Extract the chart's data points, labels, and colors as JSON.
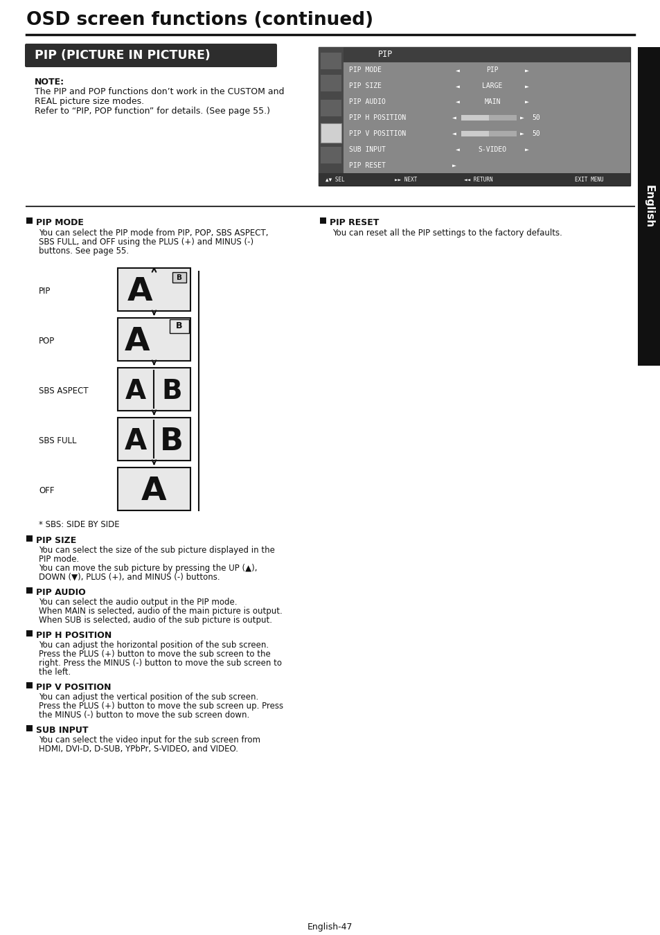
{
  "page_title": "OSD screen functions (continued)",
  "section_title": "PIP (PICTURE IN PICTURE)",
  "note_title": "NOTE:",
  "note_lines": [
    "The PIP and POP functions don’t work in the CUSTOM and",
    "REAL picture size modes.",
    "Refer to “PIP, POP function” for details. (See page 55.)"
  ],
  "pip_menu_title": "PIP",
  "pip_menu_items": [
    {
      "label": "PIP MODE",
      "left": "◄",
      "value": "PIP",
      "right": "►",
      "slider": false,
      "num": ""
    },
    {
      "label": "PIP SIZE",
      "left": "◄",
      "value": "LARGE",
      "right": "►",
      "slider": false,
      "num": ""
    },
    {
      "label": "PIP AUDIO",
      "left": "◄",
      "value": "MAIN",
      "right": "►",
      "slider": false,
      "num": ""
    },
    {
      "label": "PIP H POSITION",
      "left": "◄",
      "value": "",
      "right": "►",
      "slider": true,
      "num": "50"
    },
    {
      "label": "PIP V POSITION",
      "left": "◄",
      "value": "",
      "right": "►",
      "slider": true,
      "num": "50"
    },
    {
      "label": "SUB INPUT",
      "left": "◄",
      "value": "S-VIDEO",
      "right": "►",
      "slider": false,
      "num": ""
    },
    {
      "label": "PIP RESET",
      "left": "►",
      "value": "",
      "right": "",
      "slider": false,
      "num": ""
    }
  ],
  "nav_bar_left": "▲▼ SEL",
  "nav_bar_mid1": "►► NEXT",
  "nav_bar_mid2": "◄◄ RETURN",
  "nav_bar_right": "EXIT MENU",
  "sidebar_label": "English",
  "pip_mode_title": "PIP MODE",
  "pip_mode_text1": "You can select the PIP mode from PIP, POP, SBS ASPECT,",
  "pip_mode_text2": "SBS FULL, and OFF using the PLUS (+) and MINUS (-)",
  "pip_mode_text3": "buttons. See page 55.",
  "pip_modes": [
    "PIP",
    "POP",
    "SBS ASPECT",
    "SBS FULL",
    "OFF"
  ],
  "sbs_note": "* SBS: SIDE BY SIDE",
  "pip_reset_title": "PIP RESET",
  "pip_reset_text": "You can reset all the PIP settings to the factory defaults.",
  "sections": [
    {
      "title": "PIP SIZE",
      "lines": [
        "You can select the size of the sub picture displayed in the",
        "PIP mode.",
        "You can move the sub picture by pressing the UP (▲),",
        "DOWN (▼), PLUS (+), and MINUS (-) buttons."
      ]
    },
    {
      "title": "PIP AUDIO",
      "lines": [
        "You can select the audio output in the PIP mode.",
        "When MAIN is selected, audio of the main picture is output.",
        "When SUB is selected, audio of the sub picture is output."
      ]
    },
    {
      "title": "PIP H POSITION",
      "lines": [
        "You can adjust the horizontal position of the sub screen.",
        "Press the PLUS (+) button to move the sub screen to the",
        "right. Press the MINUS (-) button to move the sub screen to",
        "the left."
      ]
    },
    {
      "title": "PIP V POSITION",
      "lines": [
        "You can adjust the vertical position of the sub screen.",
        "Press the PLUS (+) button to move the sub screen up. Press",
        "the MINUS (-) button to move the sub screen down."
      ]
    },
    {
      "title": "SUB INPUT",
      "lines": [
        "You can select the video input for the sub screen from",
        "HDMI, DVI-D, D-SUB, YPbPr, S-VIDEO, and VIDEO."
      ]
    }
  ],
  "page_number": "English-47",
  "bg_color": "#ffffff",
  "title_color": "#111111",
  "section_bg": "#2a2a2a",
  "section_text_color": "#ffffff",
  "menu_bg_dark": "#5a5a5a",
  "menu_bg_mid": "#777777",
  "menu_bg_light": "#8e8e8e",
  "menu_title_bg": "#444444",
  "menu_text_color": "#ffffff",
  "sidebar_bg": "#111111",
  "sidebar_text_color": "#ffffff",
  "pip_box_bg": "#e8e8e8",
  "pip_box_border": "#111111",
  "arrow_color": "#111111",
  "sep_color": "#888888",
  "bullet_color": "#111111"
}
